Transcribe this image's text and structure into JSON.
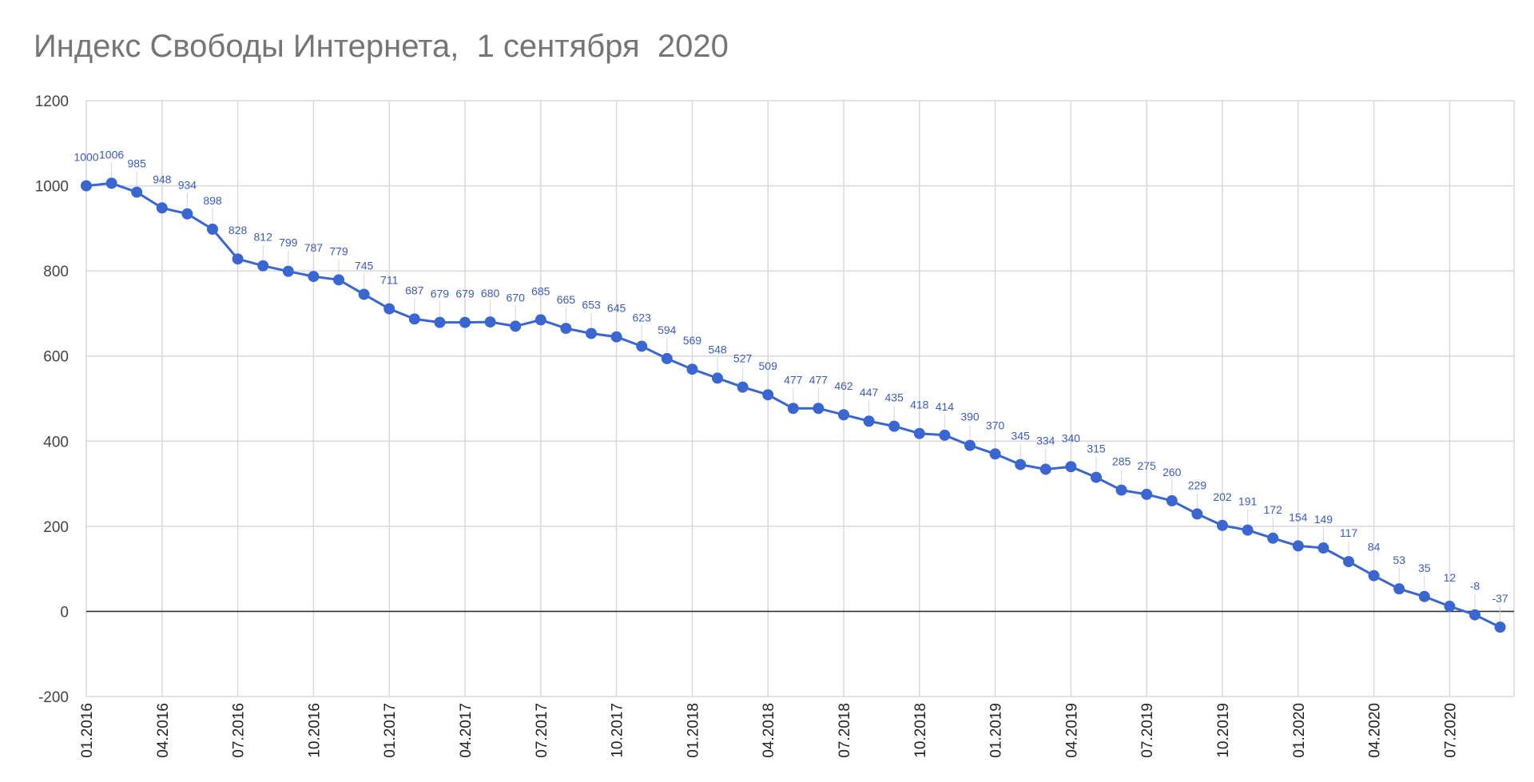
{
  "chart_data": {
    "type": "line",
    "title": "Индекс Свободы Интернета,  1 сентября  2020",
    "xlabel": "",
    "ylabel": "",
    "ylim": [
      -200,
      1200
    ],
    "yticks": [
      1200,
      1000,
      800,
      600,
      400,
      200,
      0,
      -200
    ],
    "x_tick_labels": [
      "01.2016",
      "04.2016",
      "07.2016",
      "10.2016",
      "01.2017",
      "04.2017",
      "07.2017",
      "10.2017",
      "01.2018",
      "04.2018",
      "07.2018",
      "10.2018",
      "01.2019",
      "04.2019",
      "07.2019",
      "10.2019",
      "01.2020",
      "04.2020",
      "07.2020"
    ],
    "x_tick_every": 3,
    "grid": true,
    "legend": "none",
    "colors": {
      "series": "#3a66d1",
      "label": "#3b5bbf",
      "grid": "#d9d9d9",
      "zero": "#333333"
    },
    "series": [
      {
        "values": [
          1000,
          1006,
          985,
          948,
          934,
          898,
          828,
          812,
          799,
          787,
          779,
          745,
          711,
          687,
          679,
          679,
          680,
          670,
          685,
          665,
          653,
          645,
          623,
          594,
          569,
          548,
          527,
          509,
          477,
          477,
          462,
          447,
          435,
          418,
          414,
          390,
          370,
          345,
          334,
          340,
          315,
          285,
          275,
          260,
          229,
          202,
          191,
          172,
          154,
          149,
          117,
          84,
          53,
          35,
          12,
          -8,
          -37
        ]
      }
    ]
  }
}
